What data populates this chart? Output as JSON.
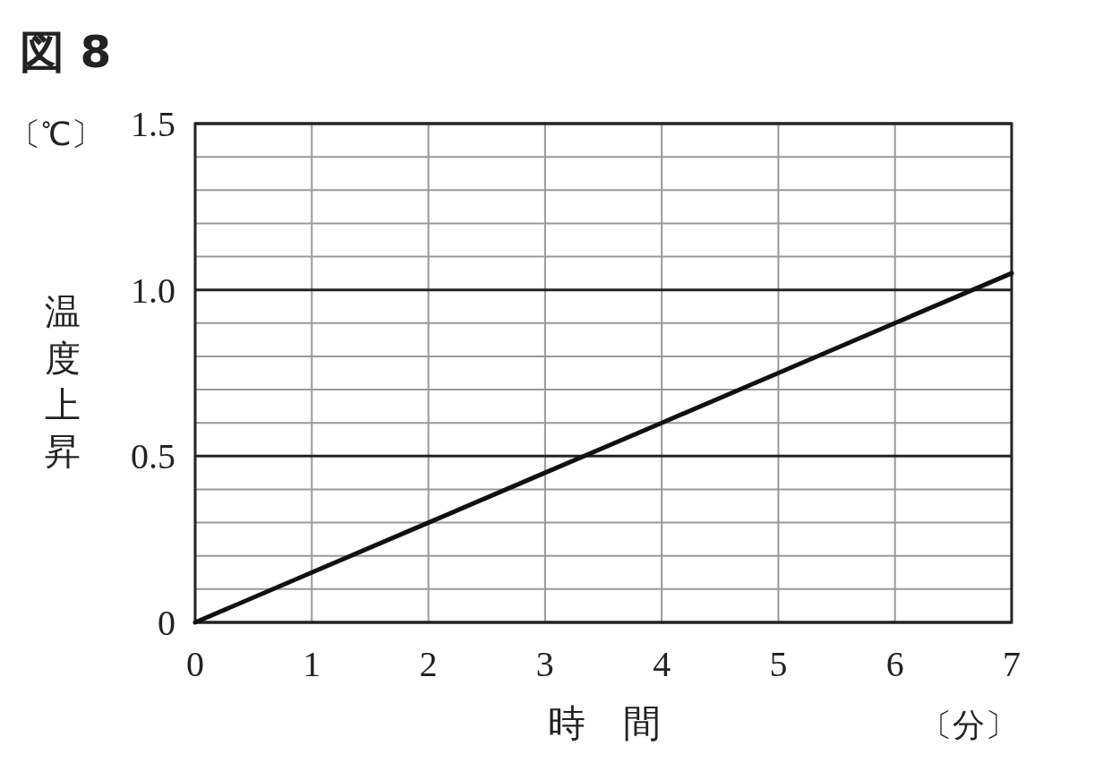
{
  "chart_data": {
    "type": "line",
    "title": "図 8",
    "xlabel": "時　間",
    "ylabel": "温度上昇",
    "annotations": [
      "〔℃〕",
      "〔分〕"
    ],
    "x": [
      0,
      1,
      2,
      3,
      4,
      5,
      6,
      7
    ],
    "series": [
      {
        "color": "#111111",
        "values": [
          0,
          0.15,
          0.3,
          0.45,
          0.6,
          0.75,
          0.9,
          1.05
        ]
      }
    ],
    "xlim": [
      0,
      7
    ],
    "xticks": [
      0,
      1,
      2,
      3,
      4,
      5,
      6,
      7
    ],
    "ylim": [
      0,
      1.5
    ],
    "yticks": [
      0,
      {
        "value": 0.1,
        "label": null
      },
      {
        "value": 0.2,
        "label": null
      },
      {
        "value": 0.3,
        "label": null
      },
      {
        "value": 0.4,
        "label": null
      },
      0.5,
      {
        "value": 0.6,
        "label": null
      },
      {
        "value": 0.7,
        "label": null
      },
      {
        "value": 0.8,
        "label": null
      },
      {
        "value": 0.9,
        "label": null
      },
      {
        "value": 1,
        "label": "1.0"
      },
      {
        "value": 1.1,
        "label": null
      },
      {
        "value": 1.2,
        "label": null
      },
      {
        "value": 1.3,
        "label": null
      },
      {
        "value": 1.4,
        "label": null
      },
      1.5
    ],
    "grid": true,
    "marker": "none",
    "line_style": "solid"
  }
}
